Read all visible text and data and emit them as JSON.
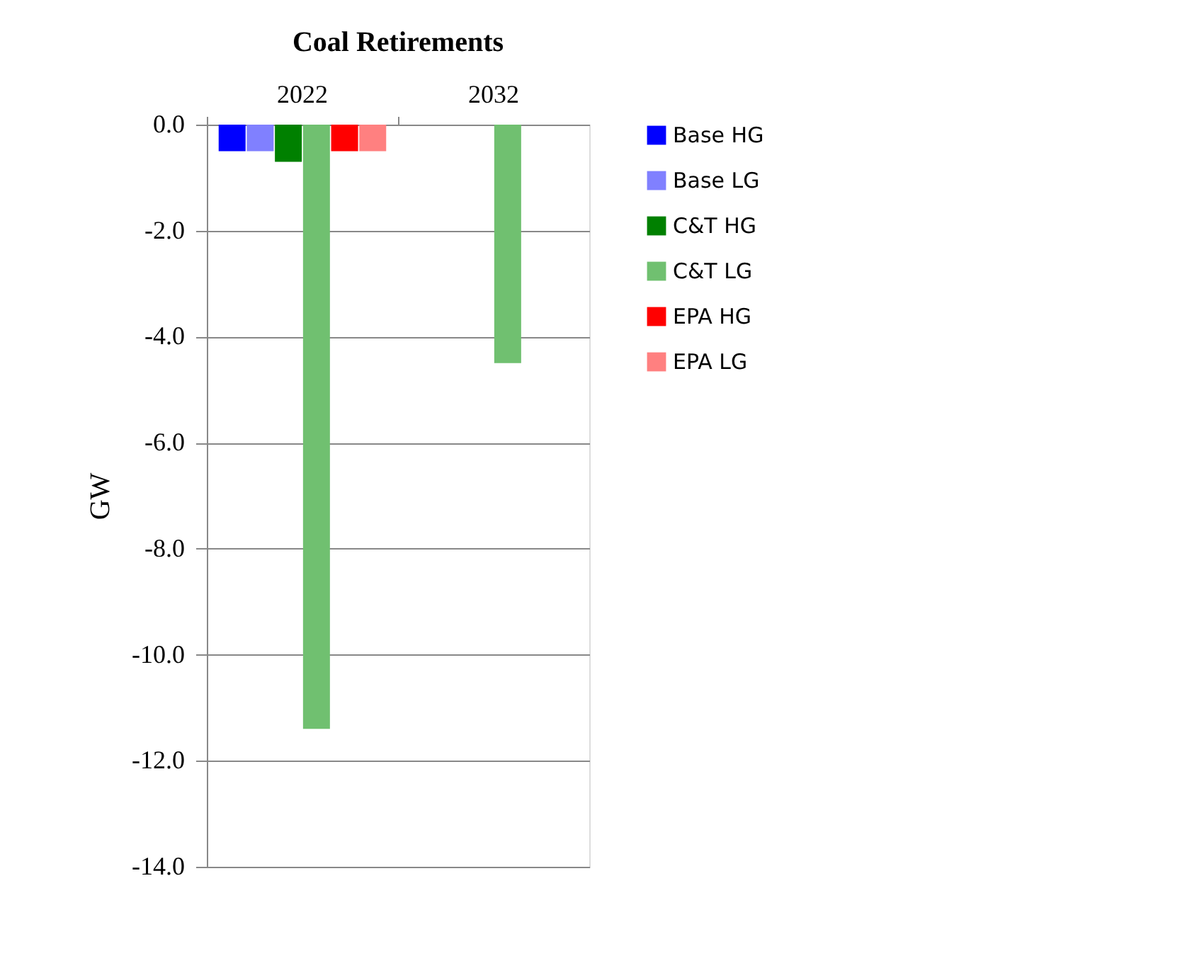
{
  "chart_data": {
    "type": "bar",
    "title": "Coal Retirements",
    "ylabel": "GW",
    "categories": [
      "2022",
      "2032"
    ],
    "series": [
      {
        "name": "Base HG",
        "color": "#0000ff",
        "values": [
          -0.5,
          0
        ]
      },
      {
        "name": "Base LG",
        "color": "#8080ff",
        "values": [
          -0.5,
          0
        ]
      },
      {
        "name": "C&T HG",
        "color": "#008000",
        "values": [
          -0.7,
          0
        ]
      },
      {
        "name": "C&T LG",
        "color": "#70c070",
        "values": [
          -11.4,
          -4.5
        ]
      },
      {
        "name": "EPA HG",
        "color": "#ff0000",
        "values": [
          -0.5,
          0
        ]
      },
      {
        "name": "EPA LG",
        "color": "#ff8080",
        "values": [
          -0.5,
          0
        ]
      }
    ],
    "ylim": [
      -14,
      0
    ],
    "yticks": [
      {
        "value": 0,
        "label": "0.0"
      },
      {
        "value": -2,
        "label": "-2.0"
      },
      {
        "value": -4,
        "label": "-4.0"
      },
      {
        "value": -6,
        "label": "-6.0"
      },
      {
        "value": -8,
        "label": "-8.0"
      },
      {
        "value": -10,
        "label": "-10.0"
      },
      {
        "value": -12,
        "label": "-12.0"
      },
      {
        "value": -14,
        "label": "-14.0"
      }
    ],
    "grid": "y",
    "legend": "right"
  }
}
